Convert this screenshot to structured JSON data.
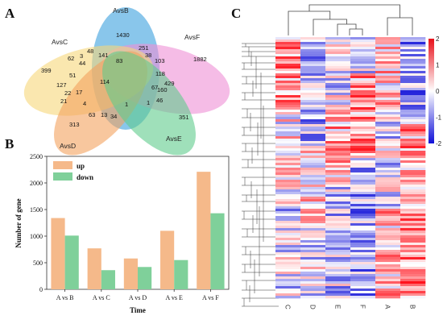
{
  "panels": {
    "a": "A",
    "b": "B",
    "c": "C"
  },
  "venn": {
    "sets": [
      {
        "name": "AvsB",
        "color": "#4aa8e0"
      },
      {
        "name": "AvsC",
        "color": "#f6d77a"
      },
      {
        "name": "AvsD",
        "color": "#f4a25e"
      },
      {
        "name": "AvsE",
        "color": "#5fcb8c"
      },
      {
        "name": "AvsF",
        "color": "#ef8fd6"
      }
    ],
    "numbers": [
      "1430",
      "1882",
      "399",
      "313",
      "351",
      "251",
      "62",
      "3",
      "48",
      "38",
      "103",
      "141",
      "83",
      "44",
      "51",
      "118",
      "114",
      "127",
      "67",
      "429",
      "22",
      "17",
      "160",
      "21",
      "4",
      "1",
      "1",
      "46",
      "63",
      "13",
      "34"
    ]
  },
  "chart_data": [
    {
      "type": "bar",
      "xlabel": "Time",
      "ylabel": "Number of gene",
      "ylim": [
        0,
        2500
      ],
      "yticks": [
        0,
        500,
        1000,
        1500,
        2000,
        2500
      ],
      "categories": [
        "A vs B",
        "A vs C",
        "A vs D",
        "A vs E",
        "A vs F"
      ],
      "series": [
        {
          "name": "up",
          "color": "#f5b98a",
          "values": [
            1340,
            770,
            580,
            1100,
            2210
          ]
        },
        {
          "name": "down",
          "color": "#7fd09a",
          "values": [
            1010,
            360,
            420,
            550,
            1430
          ]
        }
      ],
      "legend": "top-left",
      "grid": false
    },
    {
      "type": "heatmap",
      "columns": [
        "C",
        "D",
        "E",
        "F",
        "A",
        "B"
      ],
      "colorbar": {
        "min": -2,
        "max": 2,
        "ticks": [
          "2",
          "1",
          "0",
          "-1",
          "-2"
        ],
        "colors": [
          "#1010d8",
          "#ffffff",
          "#e8101a"
        ]
      },
      "rows_dendrogram": true,
      "cols_dendrogram": true
    }
  ]
}
